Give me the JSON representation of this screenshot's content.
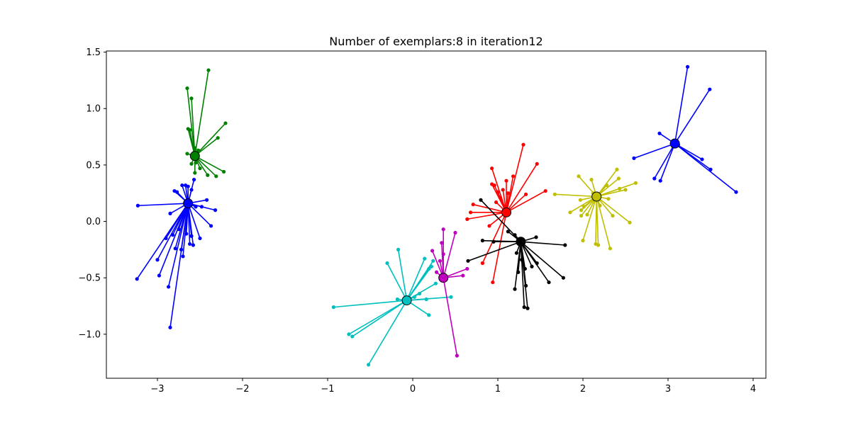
{
  "chart_data": {
    "type": "scatter",
    "title": "Number of exemplars:8 in iteration12",
    "xlabel": "",
    "ylabel": "",
    "xlim": [
      -3.6,
      4.15
    ],
    "ylim": [
      -1.39,
      1.51
    ],
    "xticks": [
      -3,
      -2,
      -1,
      0,
      1,
      2,
      3,
      4
    ],
    "xtick_labels": [
      "−3",
      "−2",
      "−1",
      "0",
      "1",
      "2",
      "3",
      "4"
    ],
    "yticks": [
      -1.0,
      -0.5,
      0.0,
      0.5,
      1.0,
      1.5
    ],
    "ytick_labels": [
      "−1.0",
      "−0.5",
      "0.0",
      "0.5",
      "1.0",
      "1.5"
    ],
    "grid": false,
    "clusters": [
      {
        "color": "#008000",
        "exemplar": [
          -2.56,
          0.58
        ],
        "points": [
          [
            -2.65,
            1.18
          ],
          [
            -2.6,
            1.09
          ],
          [
            -2.4,
            1.34
          ],
          [
            -2.2,
            0.87
          ],
          [
            -2.29,
            0.74
          ],
          [
            -2.22,
            0.44
          ],
          [
            -2.31,
            0.4
          ],
          [
            -2.41,
            0.41
          ],
          [
            -2.5,
            0.47
          ],
          [
            -2.56,
            0.43
          ],
          [
            -2.6,
            0.51
          ],
          [
            -2.55,
            0.52
          ],
          [
            -2.65,
            0.6
          ],
          [
            -2.62,
            0.81
          ],
          [
            -2.64,
            0.82
          ],
          [
            -2.56,
            0.65
          ],
          [
            -2.52,
            0.63
          ]
        ]
      },
      {
        "color": "#0000ff",
        "exemplar": [
          -2.64,
          0.16
        ],
        "points": [
          [
            -3.23,
            0.14
          ],
          [
            -3.24,
            -0.51
          ],
          [
            -3.0,
            -0.34
          ],
          [
            -2.98,
            -0.48
          ],
          [
            -2.9,
            -0.15
          ],
          [
            -2.87,
            -0.58
          ],
          [
            -2.85,
            -0.94
          ],
          [
            -2.85,
            0.07
          ],
          [
            -2.8,
            0.27
          ],
          [
            -2.77,
            0.26
          ],
          [
            -2.75,
            -0.07
          ],
          [
            -2.71,
            0.32
          ],
          [
            -2.67,
            0.32
          ],
          [
            -2.64,
            0.31
          ],
          [
            -2.6,
            0.28
          ],
          [
            -2.57,
            0.37
          ],
          [
            -2.66,
            -0.11
          ],
          [
            -2.62,
            -0.2
          ],
          [
            -2.58,
            -0.21
          ],
          [
            -2.55,
            0.13
          ],
          [
            -2.48,
            0.13
          ],
          [
            -2.42,
            0.19
          ],
          [
            -2.32,
            0.1
          ],
          [
            -2.37,
            -0.04
          ],
          [
            -2.5,
            -0.15
          ],
          [
            -2.7,
            -0.31
          ],
          [
            -2.72,
            -0.25
          ],
          [
            -2.79,
            -0.24
          ],
          [
            -2.82,
            -0.12
          ],
          [
            -2.6,
            -0.13
          ]
        ]
      },
      {
        "color": "#00bfbf",
        "exemplar": [
          -0.07,
          -0.7
        ],
        "points": [
          [
            -0.93,
            -0.76
          ],
          [
            -0.75,
            -1.0
          ],
          [
            -0.71,
            -1.02
          ],
          [
            -0.52,
            -1.27
          ],
          [
            -0.3,
            -0.37
          ],
          [
            -0.17,
            -0.25
          ],
          [
            -0.18,
            -0.69
          ],
          [
            -0.1,
            -0.72
          ],
          [
            0.02,
            -0.67
          ],
          [
            0.08,
            -0.64
          ],
          [
            0.14,
            -0.33
          ],
          [
            0.19,
            -0.42
          ],
          [
            0.24,
            -0.35
          ],
          [
            0.27,
            -0.55
          ],
          [
            0.45,
            -0.67
          ],
          [
            0.19,
            -0.83
          ],
          [
            0.16,
            -0.69
          ],
          [
            0.22,
            -0.4
          ]
        ]
      },
      {
        "color": "#bf00bf",
        "exemplar": [
          0.36,
          -0.5
        ],
        "points": [
          [
            0.36,
            -0.07
          ],
          [
            0.5,
            -0.1
          ],
          [
            0.23,
            -0.26
          ],
          [
            0.34,
            -0.19
          ],
          [
            0.36,
            -0.29
          ],
          [
            0.32,
            -0.35
          ],
          [
            0.59,
            -0.48
          ],
          [
            0.64,
            -0.42
          ],
          [
            0.52,
            -1.19
          ],
          [
            0.28,
            -0.45
          ]
        ]
      },
      {
        "color": "#ff0000",
        "exemplar": [
          1.1,
          0.08
        ],
        "points": [
          [
            0.64,
            0.02
          ],
          [
            0.71,
            0.15
          ],
          [
            0.82,
            -0.37
          ],
          [
            0.93,
            0.33
          ],
          [
            0.93,
            0.47
          ],
          [
            0.96,
            0.32
          ],
          [
            0.98,
            0.17
          ],
          [
            1.0,
            0.26
          ],
          [
            1.03,
            0.21
          ],
          [
            1.06,
            0.28
          ],
          [
            1.1,
            0.36
          ],
          [
            1.08,
            0.13
          ],
          [
            1.12,
            0.25
          ],
          [
            1.18,
            0.4
          ],
          [
            1.3,
            0.68
          ],
          [
            1.33,
            0.24
          ],
          [
            1.46,
            0.51
          ],
          [
            1.56,
            0.27
          ],
          [
            0.68,
            0.08
          ],
          [
            0.9,
            -0.04
          ],
          [
            0.94,
            -0.54
          ]
        ]
      },
      {
        "color": "#000000",
        "exemplar": [
          1.27,
          -0.18
        ],
        "points": [
          [
            0.8,
            0.19
          ],
          [
            0.82,
            -0.17
          ],
          [
            0.65,
            -0.35
          ],
          [
            0.95,
            -0.18
          ],
          [
            1.12,
            -0.09
          ],
          [
            1.2,
            -0.12
          ],
          [
            1.2,
            -0.6
          ],
          [
            1.28,
            -0.34
          ],
          [
            1.32,
            -0.42
          ],
          [
            1.31,
            -0.76
          ],
          [
            1.35,
            -0.77
          ],
          [
            1.33,
            -0.57
          ],
          [
            1.4,
            -0.4
          ],
          [
            1.46,
            -0.37
          ],
          [
            1.6,
            -0.54
          ],
          [
            1.79,
            -0.21
          ],
          [
            1.77,
            -0.5
          ],
          [
            1.45,
            -0.14
          ],
          [
            1.22,
            -0.28
          ],
          [
            1.24,
            -0.45
          ]
        ]
      },
      {
        "color": "#bfbf00",
        "exemplar": [
          2.16,
          0.22
        ],
        "points": [
          [
            1.67,
            0.24
          ],
          [
            1.85,
            0.08
          ],
          [
            1.95,
            0.4
          ],
          [
            1.97,
            0.19
          ],
          [
            1.98,
            0.05
          ],
          [
            2.0,
            -0.17
          ],
          [
            2.01,
            0.13
          ],
          [
            2.05,
            0.06
          ],
          [
            2.1,
            0.37
          ],
          [
            2.12,
            0.25
          ],
          [
            2.15,
            -0.2
          ],
          [
            2.18,
            -0.21
          ],
          [
            2.2,
            0.14
          ],
          [
            2.28,
            0.32
          ],
          [
            2.3,
            0.2
          ],
          [
            2.35,
            0.05
          ],
          [
            2.4,
            0.46
          ],
          [
            2.42,
            0.38
          ],
          [
            2.43,
            0.29
          ],
          [
            2.5,
            0.28
          ],
          [
            2.55,
            -0.01
          ],
          [
            2.62,
            0.34
          ],
          [
            2.32,
            -0.24
          ],
          [
            1.98,
            0.1
          ]
        ]
      },
      {
        "color": "#0000ff",
        "exemplar": [
          3.08,
          0.69
        ],
        "points": [
          [
            2.6,
            0.56
          ],
          [
            2.84,
            0.38
          ],
          [
            2.91,
            0.36
          ],
          [
            2.9,
            0.78
          ],
          [
            3.23,
            1.37
          ],
          [
            3.49,
            1.17
          ],
          [
            3.4,
            0.55
          ],
          [
            3.5,
            0.46
          ],
          [
            3.8,
            0.26
          ],
          [
            3.12,
            0.68
          ]
        ]
      }
    ]
  }
}
